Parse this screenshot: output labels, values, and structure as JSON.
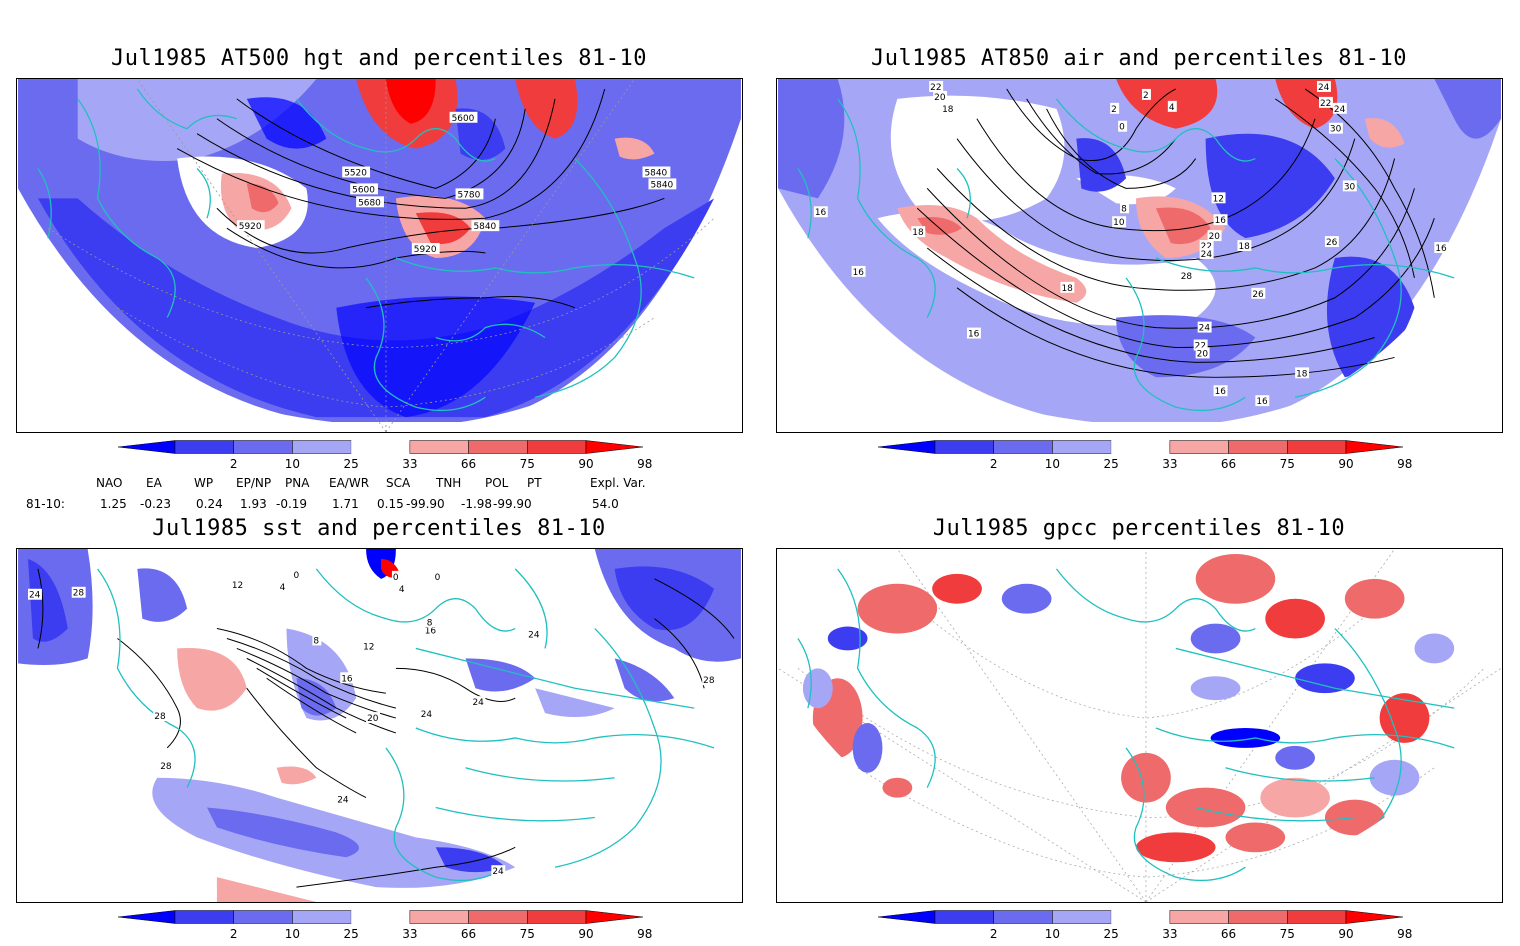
{
  "panels": [
    {
      "title": "Jul1985 AT500 hgt and percentiles 81-10",
      "contour_labels": [
        "5600",
        "5520",
        "5600",
        "5680",
        "5780",
        "5840",
        "5840",
        "5840",
        "5920",
        "5920"
      ]
    },
    {
      "title": "Jul1985 AT850 air and percentiles 81-10",
      "contour_labels": [
        "22",
        "20",
        "18",
        "2",
        "4",
        "0",
        "2",
        "24",
        "22",
        "24",
        "30",
        "30",
        "12",
        "16",
        "18",
        "16",
        "16",
        "16",
        "8",
        "10",
        "18",
        "20",
        "22",
        "24",
        "28",
        "18",
        "26",
        "26",
        "24",
        "22",
        "20",
        "18",
        "16",
        "16",
        "16"
      ]
    },
    {
      "title": "Jul1985 sst and percentiles 81-10",
      "contour_labels": [
        "24",
        "28",
        "12",
        "4",
        "0",
        "0",
        "4",
        "8",
        "12",
        "16",
        "16",
        "20",
        "24",
        "24",
        "24",
        "28",
        "28",
        "24",
        "28",
        "24",
        "8",
        "0"
      ]
    },
    {
      "title": "Jul1985 gpcc percentiles 81-10",
      "contour_labels": []
    }
  ],
  "colorbar": {
    "labels": [
      "2",
      "10",
      "25",
      "33",
      "66",
      "75",
      "90",
      "98"
    ],
    "colors": [
      "#0000ff",
      "#3c3cf0",
      "#6b6bef",
      "#a6a6f7",
      "#ffffff",
      "#f7a6a6",
      "#ef6b6b",
      "#f03c3c",
      "#ff0000"
    ]
  },
  "indices": {
    "headers": [
      "NAO",
      "EA",
      "WP",
      "EP/NP",
      "PNA",
      "EA/WR",
      "SCA",
      "TNH",
      "POL",
      "PT",
      "Expl. Var."
    ],
    "row_label": "81-10:",
    "values": [
      "1.25",
      "-0.23",
      "0.24",
      "1.93",
      "-0.19",
      "1.71",
      "0.15",
      "-99.90",
      "-1.98",
      "-99.90",
      "54.0"
    ]
  }
}
